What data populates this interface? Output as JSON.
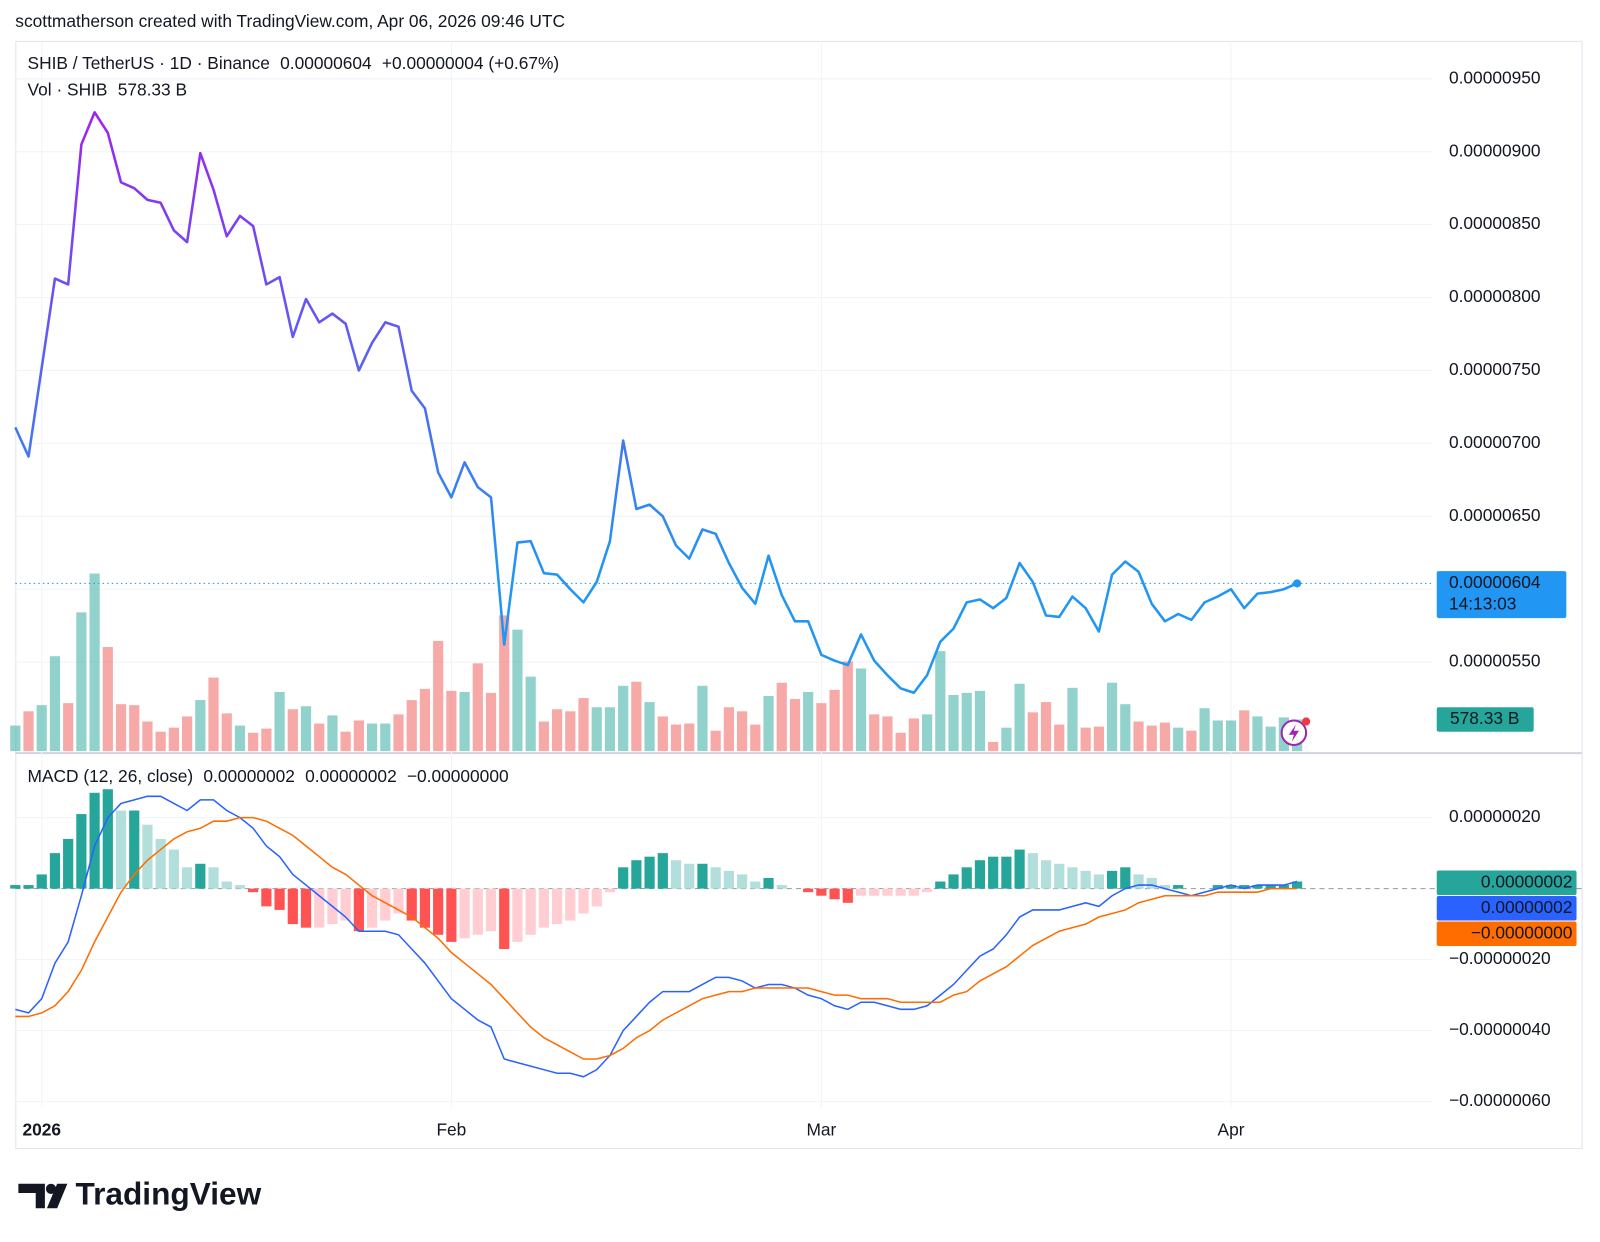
{
  "header": {
    "attribution": "scottmatherson created with TradingView.com, Apr 06, 2026 09:46 UTC"
  },
  "footer": {
    "brand": "TradingView"
  },
  "chart_data": [
    {
      "type": "line",
      "series": [
        {
          "name": "SHIB / TetherUS · 1D · Binance",
          "color": "#2196f3",
          "gradient_color": "#a020f0",
          "values": [
            7.11e-06,
            6.91e-06,
            7.52e-06,
            8.13e-06,
            8.09e-06,
            9.05e-06,
            9.27e-06,
            9.13e-06,
            8.79e-06,
            8.75e-06,
            8.67e-06,
            8.65e-06,
            8.46e-06,
            8.38e-06,
            8.99e-06,
            8.74e-06,
            8.42e-06,
            8.56e-06,
            8.49e-06,
            8.09e-06,
            8.14e-06,
            7.73e-06,
            7.99e-06,
            7.83e-06,
            7.89e-06,
            7.82e-06,
            7.5e-06,
            7.69e-06,
            7.83e-06,
            7.8e-06,
            7.36e-06,
            7.24e-06,
            6.8e-06,
            6.63e-06,
            6.87e-06,
            6.7e-06,
            6.63e-06,
            5.62e-06,
            6.32e-06,
            6.33e-06,
            6.11e-06,
            6.1e-06,
            6e-06,
            5.91e-06,
            6.05e-06,
            6.33e-06,
            7.02e-06,
            6.55e-06,
            6.58e-06,
            6.5e-06,
            6.3e-06,
            6.21e-06,
            6.41e-06,
            6.38e-06,
            6.18e-06,
            6.01e-06,
            5.9e-06,
            6.23e-06,
            5.96e-06,
            5.78e-06,
            5.78e-06,
            5.55e-06,
            5.51e-06,
            5.48e-06,
            5.69e-06,
            5.51e-06,
            5.41e-06,
            5.32e-06,
            5.29e-06,
            5.41e-06,
            5.64e-06,
            5.73e-06,
            5.91e-06,
            5.93e-06,
            5.87e-06,
            5.94e-06,
            6.18e-06,
            6.05e-06,
            5.82e-06,
            5.81e-06,
            5.95e-06,
            5.87e-06,
            5.71e-06,
            6.1e-06,
            6.19e-06,
            6.12e-06,
            5.9e-06,
            5.78e-06,
            5.83e-06,
            5.79e-06,
            5.91e-06,
            5.95e-06,
            6e-06,
            5.87e-06,
            5.97e-06,
            5.98e-06,
            6e-06,
            6.04e-06
          ]
        }
      ],
      "legend": {
        "price": "0.00000604",
        "change": "+0.00000004 (+0.67%)"
      },
      "countdown": "14:13:03",
      "ylim": [
        4.89e-06,
        9.76e-06
      ],
      "yticks": [
        {
          "value": 5.5e-06,
          "label": "0.00000550"
        },
        {
          "value": 6e-06,
          "label": "0.00000600"
        },
        {
          "value": 6.5e-06,
          "label": "0.00000650"
        },
        {
          "value": 7e-06,
          "label": "0.00000700"
        },
        {
          "value": 7.5e-06,
          "label": "0.00000750"
        },
        {
          "value": 8e-06,
          "label": "0.00000800"
        },
        {
          "value": 8.5e-06,
          "label": "0.00000850"
        },
        {
          "value": 9e-06,
          "label": "0.00000900"
        },
        {
          "value": 9.5e-06,
          "label": "0.00000950"
        }
      ],
      "grid": true
    },
    {
      "type": "bar",
      "series": [
        {
          "name": "Vol · SHIB",
          "up_color": "#26a69a",
          "down_color": "#ef5350",
          "values": [
            467,
            728,
            840,
            1735,
            877,
            2538,
            3247,
            1903,
            858,
            840,
            541,
            355,
            429,
            634,
            933,
            1344,
            690,
            467,
            336,
            411,
            1082,
            765,
            821,
            504,
            653,
            355,
            560,
            504,
            504,
            672,
            933,
            1138,
            2015,
            1101,
            1082,
            1605,
            1064,
            2482,
            2221,
            1362,
            541,
            765,
            728,
            970,
            802,
            802,
            1194,
            1269,
            896,
            634,
            485,
            504,
            1194,
            373,
            802,
            728,
            485,
            1008,
            1250,
            952,
            1082,
            877,
            1120,
            1642,
            1511,
            672,
            634,
            336,
            597,
            672,
            1829,
            1026,
            1064,
            1101,
            168,
            429,
            1232,
            709,
            896,
            485,
            1157,
            429,
            448,
            1250,
            858,
            541,
            467,
            522,
            429,
            373,
            784,
            560,
            560,
            746,
            634,
            448,
            616,
            578.33
          ]
        }
      ],
      "current": {
        "value": 578.33,
        "label": "578.33 B"
      }
    },
    {
      "type": "macd",
      "title": "MACD (12, 26, close)",
      "categories": [
        null,
        null,
        "2026",
        null,
        null,
        null,
        null,
        null,
        null,
        null,
        null,
        null,
        null,
        null,
        null,
        null,
        null,
        null,
        null,
        null,
        null,
        null,
        null,
        null,
        null,
        null,
        null,
        null,
        null,
        null,
        null,
        null,
        null,
        "Feb",
        null,
        null,
        null,
        null,
        null,
        null,
        null,
        null,
        null,
        null,
        null,
        null,
        null,
        null,
        null,
        null,
        null,
        null,
        null,
        null,
        null,
        null,
        null,
        null,
        null,
        null,
        null,
        "Mar",
        null,
        null,
        null,
        null,
        null,
        null,
        null,
        null,
        null,
        null,
        null,
        null,
        null,
        null,
        null,
        null,
        null,
        null,
        null,
        null,
        null,
        null,
        null,
        null,
        null,
        null,
        null,
        null,
        null,
        null,
        "Apr",
        null,
        null,
        null,
        null,
        null
      ],
      "series": [
        {
          "type": "bar",
          "color": "#26a69a",
          "colors": {
            "grow_up": "#26a69a",
            "fall_up": "#b2dfdb",
            "grow_down": "#ff5252",
            "fall_down": "#ffcdd2"
          },
          "values": [
            1e-08,
            1e-08,
            4e-08,
            1e-07,
            1.4e-07,
            2.1e-07,
            2.7e-07,
            2.8e-07,
            2.2e-07,
            2.2e-07,
            1.8e-07,
            1.4e-07,
            1.1e-07,
            6e-08,
            7e-08,
            6e-08,
            2e-08,
            1e-08,
            -1e-08,
            -5e-08,
            -6e-08,
            -1e-07,
            -1.1e-07,
            -1.1e-07,
            -1e-07,
            -9e-08,
            -1.2e-07,
            -1.1e-07,
            -9e-08,
            -7e-08,
            -9e-08,
            -1.1e-07,
            -1.3e-07,
            -1.5e-07,
            -1.4e-07,
            -1.3e-07,
            -1.2e-07,
            -1.7e-07,
            -1.5e-07,
            -1.3e-07,
            -1.1e-07,
            -1e-07,
            -9e-08,
            -7e-08,
            -5e-08,
            -1e-08,
            6e-08,
            8e-08,
            9e-08,
            1e-07,
            8e-08,
            7e-08,
            7e-08,
            6e-08,
            5e-08,
            4e-08,
            2e-08,
            3e-08,
            1e-08,
            0,
            -1e-08,
            -2e-08,
            -3e-08,
            -4e-08,
            -2e-08,
            -2e-08,
            -2e-08,
            -2e-08,
            -2e-08,
            -1e-08,
            2e-08,
            4e-08,
            6e-08,
            8e-08,
            9e-08,
            9e-08,
            1.1e-07,
            1e-07,
            8e-08,
            7e-08,
            6e-08,
            5e-08,
            4e-08,
            5e-08,
            6e-08,
            4e-08,
            3e-08,
            1e-08,
            1e-08,
            0,
            0,
            1e-08,
            1e-08,
            1e-08,
            1e-08,
            1e-08,
            1e-08,
            2e-08
          ]
        },
        {
          "type": "line",
          "color": "#2962ff",
          "values": [
            -3.4e-07,
            -3.5e-07,
            -3.1e-07,
            -2.1e-07,
            -1.5e-07,
            -2e-08,
            1.2e-07,
            2e-07,
            2.4e-07,
            2.5e-07,
            2.6e-07,
            2.6e-07,
            2.4e-07,
            2.2e-07,
            2.5e-07,
            2.5e-07,
            2.2e-07,
            2e-07,
            1.7e-07,
            1.2e-07,
            9e-08,
            4e-08,
            1e-08,
            -2e-08,
            -5e-08,
            -8e-08,
            -1.2e-07,
            -1.2e-07,
            -1.2e-07,
            -1.3e-07,
            -1.7e-07,
            -2.1e-07,
            -2.6e-07,
            -3.1e-07,
            -3.4e-07,
            -3.7e-07,
            -3.9e-07,
            -4.8e-07,
            -4.9e-07,
            -5e-07,
            -5.1e-07,
            -5.2e-07,
            -5.2e-07,
            -5.3e-07,
            -5.1e-07,
            -4.7e-07,
            -4e-07,
            -3.6e-07,
            -3.2e-07,
            -2.9e-07,
            -2.9e-07,
            -2.9e-07,
            -2.7e-07,
            -2.5e-07,
            -2.5e-07,
            -2.6e-07,
            -2.8e-07,
            -2.7e-07,
            -2.7e-07,
            -2.8e-07,
            -3e-07,
            -3.1e-07,
            -3.3e-07,
            -3.4e-07,
            -3.2e-07,
            -3.2e-07,
            -3.3e-07,
            -3.4e-07,
            -3.4e-07,
            -3.3e-07,
            -3e-07,
            -2.7e-07,
            -2.3e-07,
            -1.9e-07,
            -1.7e-07,
            -1.3e-07,
            -8e-08,
            -6e-08,
            -6e-08,
            -6e-08,
            -5e-08,
            -4e-08,
            -5e-08,
            -2e-08,
            0,
            1e-08,
            1e-08,
            0,
            -1e-08,
            -2e-08,
            -1e-08,
            0,
            1e-08,
            0,
            1e-08,
            1e-08,
            1e-08,
            2e-08
          ]
        },
        {
          "type": "line",
          "color": "#ff6d00",
          "values": [
            -3.6e-07,
            -3.6e-07,
            -3.5e-07,
            -3.3e-07,
            -2.9e-07,
            -2.3e-07,
            -1.5e-07,
            -8e-08,
            -1e-08,
            4e-08,
            8e-08,
            1.1e-07,
            1.4e-07,
            1.6e-07,
            1.7e-07,
            1.9e-07,
            1.9e-07,
            2e-07,
            2e-07,
            1.9e-07,
            1.7e-07,
            1.5e-07,
            1.2e-07,
            9e-08,
            6e-08,
            4e-08,
            1e-08,
            -2e-08,
            -4e-08,
            -6e-08,
            -8e-08,
            -1.1e-07,
            -1.4e-07,
            -1.8e-07,
            -2.1e-07,
            -2.4e-07,
            -2.7e-07,
            -3.1e-07,
            -3.5e-07,
            -3.9e-07,
            -4.2e-07,
            -4.4e-07,
            -4.6e-07,
            -4.8e-07,
            -4.8e-07,
            -4.7e-07,
            -4.5e-07,
            -4.2e-07,
            -4e-07,
            -3.7e-07,
            -3.5e-07,
            -3.3e-07,
            -3.1e-07,
            -3e-07,
            -2.9e-07,
            -2.9e-07,
            -2.8e-07,
            -2.8e-07,
            -2.8e-07,
            -2.8e-07,
            -2.8e-07,
            -2.9e-07,
            -3e-07,
            -3e-07,
            -3.1e-07,
            -3.1e-07,
            -3.1e-07,
            -3.2e-07,
            -3.2e-07,
            -3.2e-07,
            -3.2e-07,
            -3e-07,
            -2.9e-07,
            -2.6e-07,
            -2.4e-07,
            -2.2e-07,
            -1.9e-07,
            -1.6e-07,
            -1.4e-07,
            -1.2e-07,
            -1.1e-07,
            -1e-07,
            -8e-08,
            -7e-08,
            -6e-08,
            -4e-08,
            -3e-08,
            -2e-08,
            -2e-08,
            -2e-08,
            -2e-08,
            -1e-08,
            -1e-08,
            -1e-08,
            -1e-08,
            0,
            0,
            0
          ]
        }
      ],
      "legend_values": [
        "0.00000002",
        "0.00000002",
        "−0.00000000"
      ],
      "ylim": [
        -6.1e-07,
        3.5e-07
      ],
      "yticks": [
        {
          "value": -6e-07,
          "label": "−0.00000060"
        },
        {
          "value": -4e-07,
          "label": "−0.00000040"
        },
        {
          "value": -2e-07,
          "label": "−0.00000020"
        },
        {
          "value": 2e-07,
          "label": "0.00000020"
        }
      ],
      "grid": true
    }
  ]
}
